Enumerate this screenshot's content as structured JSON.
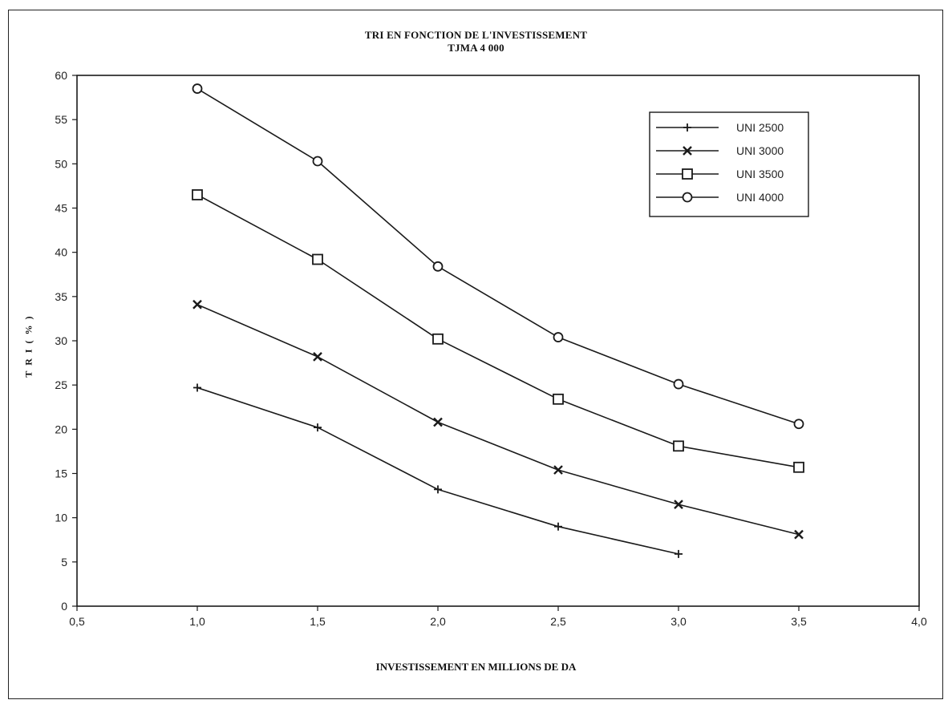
{
  "chart_data": {
    "type": "line",
    "title": "TRI EN FONCTION DE L'INVESTISSEMENT",
    "subtitle": "TJMA    4 000",
    "xlabel": "INVESTISSEMENT EN MILLIONS DE DA",
    "ylabel": "T R I ( % )",
    "xlim": [
      0.5,
      4.0
    ],
    "ylim": [
      0,
      60
    ],
    "x_ticks": [
      "0,5",
      "1,0",
      "1,5",
      "2,0",
      "2,5",
      "3,0",
      "3,5",
      "4,0"
    ],
    "x_tick_values": [
      0.5,
      1.0,
      1.5,
      2.0,
      2.5,
      3.0,
      3.5,
      4.0
    ],
    "y_ticks": [
      "0",
      "5",
      "10",
      "15",
      "20",
      "25",
      "30",
      "35",
      "40",
      "45",
      "50",
      "55",
      "60"
    ],
    "y_tick_values": [
      0,
      5,
      10,
      15,
      20,
      25,
      30,
      35,
      40,
      45,
      50,
      55,
      60
    ],
    "grid": false,
    "legend_position": "top-right",
    "series": [
      {
        "name": "UNI 2500",
        "marker": "plus",
        "x": [
          1.0,
          1.5,
          2.0,
          2.5,
          3.0
        ],
        "values": [
          24.7,
          20.2,
          13.2,
          9.0,
          5.9
        ]
      },
      {
        "name": "UNI 3000",
        "marker": "cross",
        "x": [
          1.0,
          1.5,
          2.0,
          2.5,
          3.0,
          3.5
        ],
        "values": [
          34.1,
          28.2,
          20.8,
          15.4,
          11.5,
          8.1
        ]
      },
      {
        "name": "UNI 3500",
        "marker": "square",
        "x": [
          1.0,
          1.5,
          2.0,
          2.5,
          3.0,
          3.5
        ],
        "values": [
          46.5,
          39.2,
          30.2,
          23.4,
          18.1,
          15.7
        ]
      },
      {
        "name": "UNI 4000",
        "marker": "circle",
        "x": [
          1.0,
          1.5,
          2.0,
          2.5,
          3.0,
          3.5
        ],
        "values": [
          58.5,
          50.3,
          38.4,
          30.4,
          25.1,
          20.6
        ]
      }
    ],
    "colors": {
      "line": "#1a1a1a",
      "axis": "#1a1a1a"
    }
  }
}
